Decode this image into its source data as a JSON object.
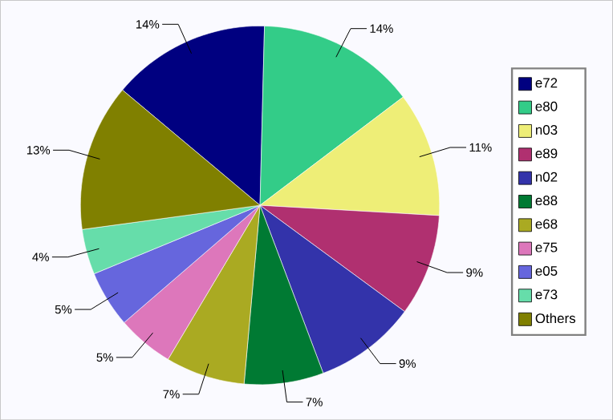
{
  "chart_data": {
    "type": "pie",
    "categories": [
      "e72",
      "e80",
      "n03",
      "e89",
      "n02",
      "e88",
      "e68",
      "e75",
      "e05",
      "e73",
      "Others"
    ],
    "values": [
      14,
      14,
      11,
      9,
      9,
      7,
      7,
      5,
      5,
      4,
      13
    ],
    "colors": [
      "#000080",
      "#33cc88",
      "#eeee77",
      "#b03070",
      "#3333aa",
      "#007a33",
      "#aaaa22",
      "#dd77bb",
      "#6666dd",
      "#66ddaa",
      "#808000"
    ],
    "value_labels": [
      "14%",
      "14%",
      "11%",
      "9%",
      "9%",
      "7%",
      "7%",
      "5%",
      "5%",
      "4%",
      "13%"
    ],
    "legend": "right"
  }
}
